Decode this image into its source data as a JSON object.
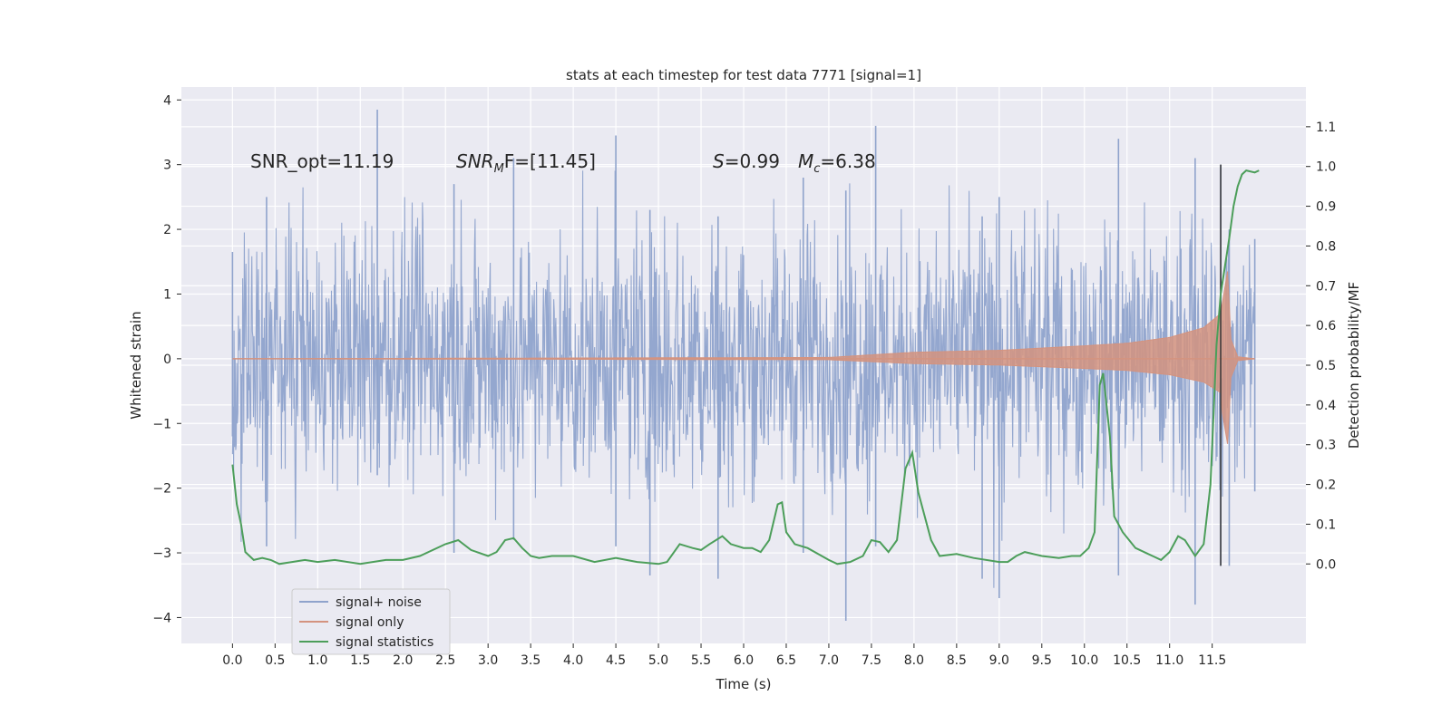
{
  "chart_data": {
    "type": "line",
    "title": "stats at each timestep for test data 7771 [signal=1]",
    "xlabel": "Time (s)",
    "ylabel_left": "Whitened strain",
    "ylabel_right": "Detection probability/MF",
    "xlim": [
      -0.6,
      12.6
    ],
    "ylim_left": [
      -4.4,
      4.2
    ],
    "ylim_right": [
      -0.2,
      1.2
    ],
    "xticks": [
      "0.0",
      "0.5",
      "1.0",
      "1.5",
      "2.0",
      "2.5",
      "3.0",
      "3.5",
      "4.0",
      "4.5",
      "5.0",
      "5.5",
      "6.0",
      "6.5",
      "7.0",
      "7.5",
      "8.0",
      "8.5",
      "9.0",
      "9.5",
      "10.0",
      "10.5",
      "11.0",
      "11.5"
    ],
    "yticks_left": [
      "4",
      "3",
      "2",
      "1",
      "0",
      "−1",
      "−2",
      "−3",
      "−4"
    ],
    "yticks_right": [
      "1.1",
      "1.0",
      "0.9",
      "0.8",
      "0.7",
      "0.6",
      "0.5",
      "0.4",
      "0.3",
      "0.2",
      "0.1",
      "0.0"
    ],
    "annotations": {
      "snr_opt": "SNR_opt=11.19",
      "snr_mf_main": "SNR",
      "snr_mf_sub": "M",
      "snr_mf_tail": "F=[11.45]",
      "s_var": "S",
      "s_val": "=0.99",
      "mc_var": "M",
      "mc_sub": "c",
      "mc_val": "=6.38"
    },
    "vline_x": 11.6,
    "grid": true,
    "legend_position": "lower-left",
    "series": [
      {
        "name": "signal+ noise",
        "axis": "left",
        "color": "#8fa3cc",
        "x_range": [
          0.0,
          12.0
        ],
        "envelope": {
          "typical_abs": 1.8,
          "max": 3.85,
          "min": -4.05
        },
        "peaks": [
          [
            0.0,
            1.65,
            -1.2
          ],
          [
            0.4,
            2.5,
            -2.9
          ],
          [
            1.7,
            3.85,
            -1.8
          ],
          [
            2.6,
            2.7,
            -3.0
          ],
          [
            3.3,
            3.1,
            -2.8
          ],
          [
            4.5,
            3.45,
            -2.9
          ],
          [
            4.9,
            2.3,
            -3.35
          ],
          [
            5.7,
            2.2,
            -3.4
          ],
          [
            6.7,
            2.8,
            -3.0
          ],
          [
            7.2,
            2.6,
            -4.05
          ],
          [
            7.55,
            3.6,
            -2.9
          ],
          [
            8.8,
            2.2,
            -3.4
          ],
          [
            9.0,
            2.5,
            -3.7
          ],
          [
            10.4,
            3.4,
            -3.35
          ],
          [
            11.3,
            3.1,
            -3.8
          ],
          [
            11.6,
            3.0,
            -3.2
          ],
          [
            11.7,
            2.0,
            -3.2
          ],
          [
            12.0,
            1.85,
            -2.05
          ]
        ]
      },
      {
        "name": "signal only",
        "axis": "left",
        "color": "#d4937f",
        "amplitude_points": [
          [
            0.0,
            0.0
          ],
          [
            7.0,
            0.02
          ],
          [
            8.0,
            0.1
          ],
          [
            9.0,
            0.13
          ],
          [
            10.0,
            0.2
          ],
          [
            10.5,
            0.24
          ],
          [
            11.0,
            0.33
          ],
          [
            11.4,
            0.48
          ],
          [
            11.6,
            0.7
          ],
          [
            11.68,
            1.35
          ],
          [
            11.72,
            0.3
          ],
          [
            11.8,
            0.03
          ],
          [
            12.0,
            0.0
          ]
        ],
        "lower_scale": 0.75
      },
      {
        "name": "signal statistics",
        "axis": "right",
        "color": "#4c9e5a",
        "points": [
          [
            0.0,
            0.25
          ],
          [
            0.05,
            0.15
          ],
          [
            0.1,
            0.1
          ],
          [
            0.15,
            0.03
          ],
          [
            0.25,
            0.01
          ],
          [
            0.35,
            0.015
          ],
          [
            0.45,
            0.01
          ],
          [
            0.55,
            0.0
          ],
          [
            0.7,
            0.005
          ],
          [
            0.85,
            0.01
          ],
          [
            1.0,
            0.005
          ],
          [
            1.2,
            0.01
          ],
          [
            1.5,
            0.0
          ],
          [
            1.8,
            0.01
          ],
          [
            2.0,
            0.01
          ],
          [
            2.2,
            0.02
          ],
          [
            2.5,
            0.05
          ],
          [
            2.65,
            0.06
          ],
          [
            2.8,
            0.035
          ],
          [
            3.0,
            0.02
          ],
          [
            3.1,
            0.03
          ],
          [
            3.2,
            0.06
          ],
          [
            3.3,
            0.065
          ],
          [
            3.4,
            0.04
          ],
          [
            3.5,
            0.02
          ],
          [
            3.6,
            0.015
          ],
          [
            3.75,
            0.02
          ],
          [
            4.0,
            0.02
          ],
          [
            4.25,
            0.005
          ],
          [
            4.5,
            0.015
          ],
          [
            4.75,
            0.005
          ],
          [
            5.0,
            0.0
          ],
          [
            5.1,
            0.005
          ],
          [
            5.25,
            0.05
          ],
          [
            5.4,
            0.04
          ],
          [
            5.5,
            0.035
          ],
          [
            5.6,
            0.05
          ],
          [
            5.75,
            0.07
          ],
          [
            5.85,
            0.05
          ],
          [
            6.0,
            0.04
          ],
          [
            6.1,
            0.04
          ],
          [
            6.2,
            0.03
          ],
          [
            6.3,
            0.06
          ],
          [
            6.4,
            0.15
          ],
          [
            6.45,
            0.155
          ],
          [
            6.5,
            0.08
          ],
          [
            6.6,
            0.05
          ],
          [
            6.75,
            0.04
          ],
          [
            7.0,
            0.01
          ],
          [
            7.1,
            0.0
          ],
          [
            7.25,
            0.005
          ],
          [
            7.4,
            0.02
          ],
          [
            7.5,
            0.06
          ],
          [
            7.6,
            0.055
          ],
          [
            7.7,
            0.03
          ],
          [
            7.8,
            0.06
          ],
          [
            7.9,
            0.24
          ],
          [
            7.98,
            0.28
          ],
          [
            8.05,
            0.18
          ],
          [
            8.2,
            0.06
          ],
          [
            8.3,
            0.02
          ],
          [
            8.5,
            0.025
          ],
          [
            8.7,
            0.015
          ],
          [
            9.0,
            0.005
          ],
          [
            9.1,
            0.005
          ],
          [
            9.2,
            0.02
          ],
          [
            9.3,
            0.03
          ],
          [
            9.5,
            0.02
          ],
          [
            9.7,
            0.015
          ],
          [
            9.85,
            0.02
          ],
          [
            9.95,
            0.02
          ],
          [
            10.05,
            0.04
          ],
          [
            10.12,
            0.08
          ],
          [
            10.18,
            0.45
          ],
          [
            10.22,
            0.48
          ],
          [
            10.3,
            0.32
          ],
          [
            10.35,
            0.12
          ],
          [
            10.45,
            0.08
          ],
          [
            10.6,
            0.04
          ],
          [
            10.75,
            0.025
          ],
          [
            10.9,
            0.01
          ],
          [
            11.0,
            0.03
          ],
          [
            11.1,
            0.07
          ],
          [
            11.18,
            0.06
          ],
          [
            11.3,
            0.02
          ],
          [
            11.4,
            0.05
          ],
          [
            11.48,
            0.2
          ],
          [
            11.55,
            0.55
          ],
          [
            11.6,
            0.68
          ],
          [
            11.65,
            0.75
          ],
          [
            11.7,
            0.82
          ],
          [
            11.75,
            0.9
          ],
          [
            11.8,
            0.95
          ],
          [
            11.85,
            0.98
          ],
          [
            11.9,
            0.99
          ],
          [
            12.0,
            0.985
          ],
          [
            12.05,
            0.99
          ]
        ]
      }
    ]
  }
}
